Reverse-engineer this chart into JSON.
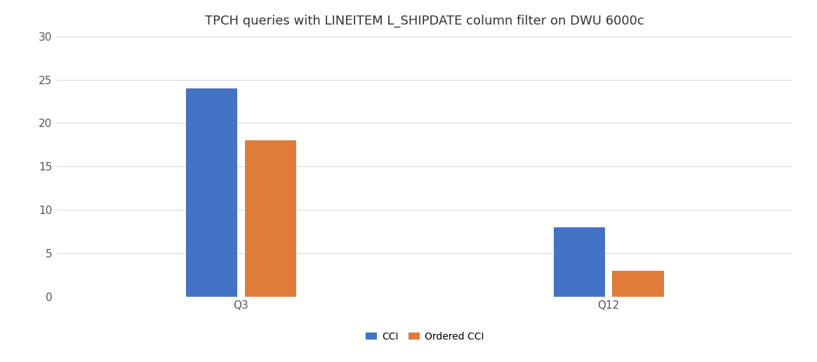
{
  "title": "TPCH queries with LINEITEM L_SHIPDATE column filter on DWU 6000c",
  "categories": [
    "Q3",
    "Q12"
  ],
  "cci_values": [
    24,
    8
  ],
  "ordered_cci_values": [
    18,
    3
  ],
  "cci_color": "#4472C4",
  "ordered_cci_color": "#E07B39",
  "legend_labels": [
    "CCI",
    "Ordered CCI"
  ],
  "ylim": [
    0,
    30
  ],
  "yticks": [
    0,
    5,
    10,
    15,
    20,
    25,
    30
  ],
  "bar_width": 0.28,
  "group_positions": [
    1.0,
    3.0
  ],
  "xlim": [
    0,
    4.0
  ],
  "title_fontsize": 13,
  "tick_fontsize": 11,
  "legend_fontsize": 10,
  "background_color": "#ffffff",
  "grid_color": "#d9d9d9"
}
